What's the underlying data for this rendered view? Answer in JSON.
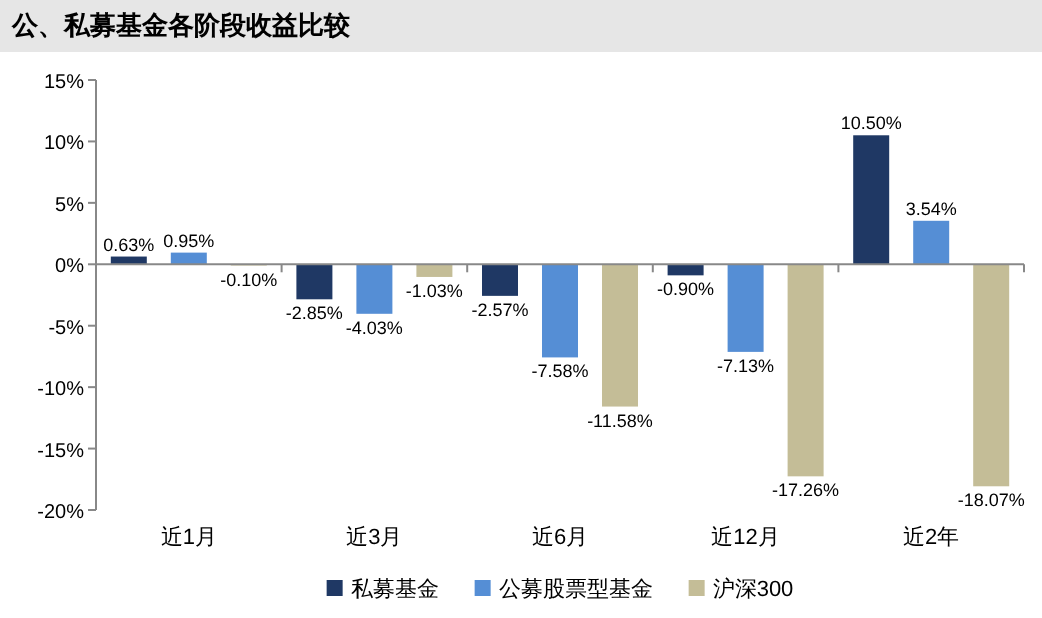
{
  "chart_data": {
    "type": "bar",
    "title": "公、私募基金各阶段收益比较",
    "categories": [
      "近1月",
      "近3月",
      "近6月",
      "近12月",
      "近2年"
    ],
    "series": [
      {
        "name": "私募基金",
        "color": "#1f3864",
        "values": [
          0.63,
          -2.85,
          -2.57,
          -0.9,
          10.5
        ],
        "value_labels": [
          "0.63%",
          "-2.85%",
          "-2.57%",
          "-0.90%",
          "10.50%"
        ]
      },
      {
        "name": "公募股票型基金",
        "color": "#558ed5",
        "values": [
          0.95,
          -4.03,
          -7.58,
          -7.13,
          3.54
        ],
        "value_labels": [
          "0.95%",
          "-4.03%",
          "-7.58%",
          "-7.13%",
          "3.54%"
        ]
      },
      {
        "name": "沪深300",
        "color": "#c4bd97",
        "values": [
          -0.1,
          -1.03,
          -11.58,
          -17.26,
          -18.07
        ],
        "value_labels": [
          "-0.10%",
          "-1.03%",
          "-11.58%",
          "-17.26%",
          "-18.07%"
        ]
      }
    ],
    "ylim": [
      -20,
      15
    ],
    "yticks": [
      {
        "value": -20,
        "label": "-20%"
      },
      {
        "value": -15,
        "label": "-15%"
      },
      {
        "value": -10,
        "label": "-10%"
      },
      {
        "value": -5,
        "label": "-5%"
      },
      {
        "value": 0,
        "label": "0%"
      },
      {
        "value": 5,
        "label": "5%"
      },
      {
        "value": 10,
        "label": "10%"
      },
      {
        "value": 15,
        "label": "15%"
      }
    ],
    "legend": "bottom"
  }
}
